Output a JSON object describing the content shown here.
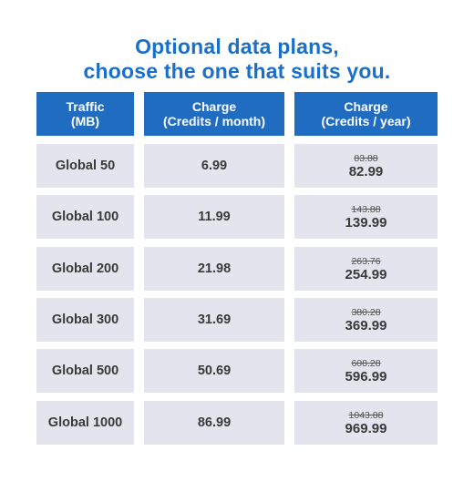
{
  "title": {
    "line1": "Optional data plans,",
    "line2": "choose the one that suits you."
  },
  "headers": {
    "traffic_line1": "Traffic",
    "traffic_line2": "(MB)",
    "monthly_line1": "Charge",
    "monthly_line2": "(Credits / month)",
    "yearly_line1": "Charge",
    "yearly_line2": "(Credits / year)"
  },
  "plans": [
    {
      "name": "Global 50",
      "monthly": "6.99",
      "yearly_old": "83.88",
      "yearly": "82.99"
    },
    {
      "name": "Global 100",
      "monthly": "11.99",
      "yearly_old": "143.88",
      "yearly": "139.99"
    },
    {
      "name": "Global 200",
      "monthly": "21.98",
      "yearly_old": "263.76",
      "yearly": "254.99"
    },
    {
      "name": "Global 300",
      "monthly": "31.69",
      "yearly_old": "380.28",
      "yearly": "369.99"
    },
    {
      "name": "Global 500",
      "monthly": "50.69",
      "yearly_old": "608.28",
      "yearly": "596.99"
    },
    {
      "name": "Global 1000",
      "monthly": "86.99",
      "yearly_old": "1043.88",
      "yearly": "969.99"
    }
  ],
  "colors": {
    "title": "#1a6fc9",
    "header_bg": "#1f6cc0",
    "cell_bg": "#e3e4ed"
  }
}
